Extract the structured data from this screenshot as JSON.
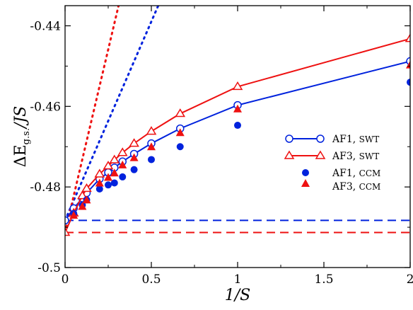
{
  "chart_data": {
    "type": "line",
    "xlabel": "1/S",
    "ylabel": "ΔE_g.s./JS",
    "ylabel_main": "ΔE",
    "ylabel_sub": "g.s.",
    "ylabel_tail": "/JS",
    "xlim": [
      0,
      2
    ],
    "ylim": [
      -0.5,
      -0.435
    ],
    "xticks": [
      0,
      0.5,
      1,
      1.5,
      2
    ],
    "xtick_labels": [
      "0",
      "0.5",
      "1",
      "1.5",
      "2"
    ],
    "yticks": [
      -0.5,
      -0.48,
      -0.46,
      -0.44
    ],
    "ytick_labels": [
      "-0.5",
      "-0.48",
      "-0.46",
      "-0.44"
    ],
    "grid": false,
    "legend_position": "right",
    "colors": {
      "blue": "#0022dd",
      "red": "#ee1111"
    },
    "series": [
      {
        "name": "AF1, SWT",
        "legend_main": "AF1,",
        "legend_tag": "SWT",
        "color": "#0022dd",
        "style": "line-open-circle",
        "x": [
          0,
          0.05,
          0.1,
          0.125,
          0.2,
          0.25,
          0.286,
          0.333,
          0.4,
          0.5,
          0.667,
          1.0,
          2.0
        ],
        "y": [
          -0.4883,
          -0.4853,
          -0.4828,
          -0.4815,
          -0.478,
          -0.4764,
          -0.4752,
          -0.4737,
          -0.4718,
          -0.4692,
          -0.4655,
          -0.4597,
          -0.4488
        ]
      },
      {
        "name": "AF3, SWT",
        "legend_main": "AF3,",
        "legend_tag": "SWT",
        "color": "#ee1111",
        "style": "line-open-triangle",
        "x": [
          0,
          0.05,
          0.1,
          0.125,
          0.2,
          0.25,
          0.286,
          0.333,
          0.4,
          0.5,
          0.667,
          1.0,
          2.0
        ],
        "y": [
          -0.4913,
          -0.4865,
          -0.4822,
          -0.4804,
          -0.4768,
          -0.4748,
          -0.4733,
          -0.4715,
          -0.4692,
          -0.4662,
          -0.4618,
          -0.4551,
          -0.4432
        ]
      },
      {
        "name": "AF1, CCM",
        "legend_main": "AF1,",
        "legend_tag": "CCM",
        "color": "#0022dd",
        "style": "filled-circle",
        "x": [
          0.05,
          0.1,
          0.125,
          0.2,
          0.25,
          0.286,
          0.333,
          0.4,
          0.5,
          0.667,
          1.0,
          2.0
        ],
        "y": [
          -0.4866,
          -0.4845,
          -0.4832,
          -0.4805,
          -0.4795,
          -0.479,
          -0.4775,
          -0.4757,
          -0.4732,
          -0.47,
          -0.4647,
          -0.454
        ]
      },
      {
        "name": "AF3, CCM",
        "legend_main": "AF3,",
        "legend_tag": "CCM",
        "color": "#ee1111",
        "style": "filled-triangle",
        "x": [
          0.05,
          0.1,
          0.125,
          0.2,
          0.25,
          0.286,
          0.333,
          0.4,
          0.5,
          0.667,
          1.0,
          2.0
        ],
        "y": [
          -0.487,
          -0.4848,
          -0.4832,
          -0.479,
          -0.4776,
          -0.4765,
          -0.4745,
          -0.4727,
          -0.47,
          -0.4665,
          -0.4606,
          -0.4497
        ]
      }
    ],
    "reference_lines": [
      {
        "kind": "dashed-horizontal",
        "color": "#0022dd",
        "y": -0.4883
      },
      {
        "kind": "dashed-horizontal",
        "color": "#ee1111",
        "y": -0.4913
      },
      {
        "kind": "dotted-linear",
        "color": "#0022dd",
        "x": [
          0,
          0.55
        ],
        "y": [
          -0.4883,
          -0.434
        ]
      },
      {
        "kind": "dotted-linear",
        "color": "#ee1111",
        "x": [
          0,
          0.31
        ],
        "y": [
          -0.4913,
          -0.435
        ]
      }
    ]
  }
}
